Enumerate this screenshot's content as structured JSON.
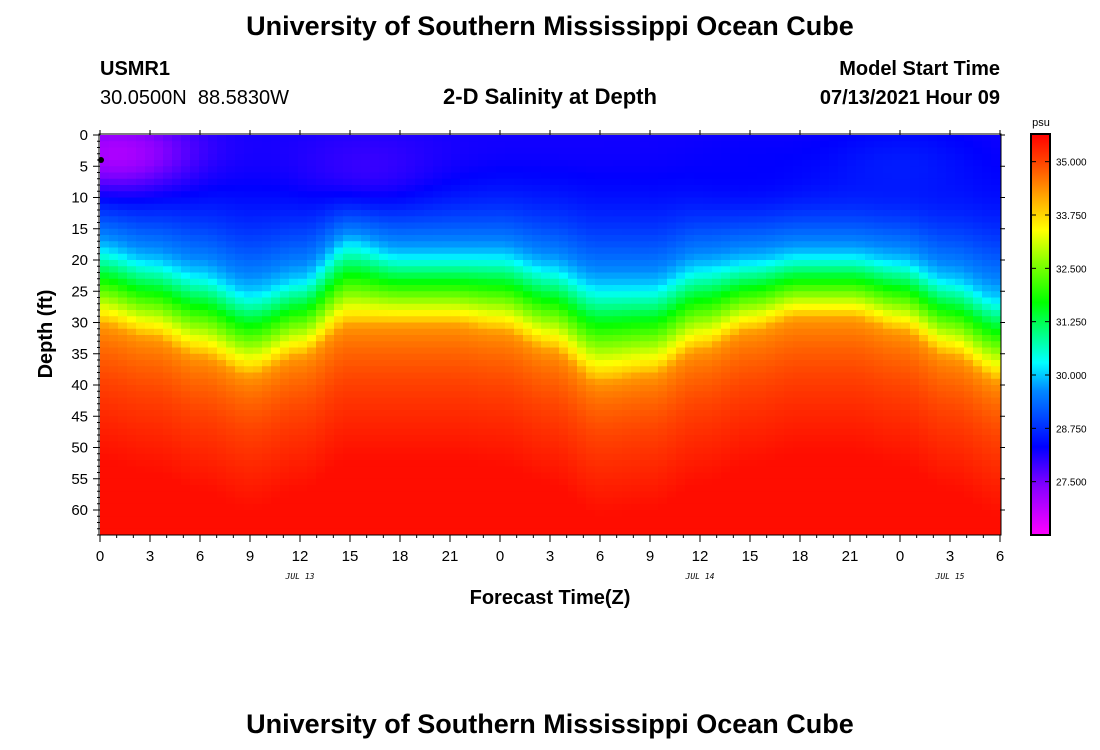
{
  "header": {
    "title": "University of Southern Mississippi Ocean Cube",
    "station_id": "USMR1",
    "station_coords": "30.0500N  88.5830W",
    "plot_title": "2-D Salinity at Depth",
    "model_label": "Model Start Time",
    "model_time": "07/13/2021 Hour 09"
  },
  "footer": {
    "title": "University of Southern Mississippi Ocean Cube"
  },
  "colorbar": {
    "unit": "psu",
    "min": 26.25,
    "max": 35.625,
    "tick_labels": [
      "35.000",
      "33.750",
      "32.500",
      "31.250",
      "30.000",
      "28.750",
      "27.500"
    ],
    "tick_values": [
      35.0,
      33.75,
      32.5,
      31.25,
      30.0,
      28.75,
      27.5
    ]
  },
  "chart_data": {
    "type": "heatmap",
    "title": "2-D Salinity at Depth",
    "xlabel": "Forecast Time(Z)",
    "ylabel": "Depth (ft)",
    "xlim": [
      0,
      54
    ],
    "ylim": [
      0,
      64
    ],
    "x_ticks": [
      0,
      3,
      6,
      9,
      12,
      15,
      18,
      21,
      24,
      27,
      30,
      33,
      36,
      39,
      42,
      45,
      48,
      51,
      54
    ],
    "x_tick_labels": [
      "0",
      "3",
      "6",
      "9",
      "12",
      "15",
      "18",
      "21",
      "0",
      "3",
      "6",
      "9",
      "12",
      "15",
      "18",
      "21",
      "0",
      "3",
      "6"
    ],
    "date_labels": [
      {
        "hour": 12,
        "label": "JUL 13"
      },
      {
        "hour": 36,
        "label": "JUL 14"
      },
      {
        "hour": 51,
        "label": "JUL 15"
      }
    ],
    "y_ticks": [
      0,
      5,
      10,
      15,
      20,
      25,
      30,
      35,
      40,
      45,
      50,
      55,
      60
    ],
    "y_tick_labels": [
      "0",
      "5",
      "10",
      "15",
      "20",
      "25",
      "30",
      "35",
      "40",
      "45",
      "50",
      "55",
      "60"
    ],
    "station_marker_depth": 4,
    "value_unit": "psu",
    "surface_salinity": 28.2,
    "deep_salinity": 35.5,
    "halocline_depth_profile": {
      "hours": [
        0,
        3,
        6,
        9,
        12,
        15,
        18,
        21,
        24,
        27,
        30,
        33,
        36,
        39,
        42,
        45,
        48,
        51,
        54
      ],
      "depth_30psu": [
        18,
        20,
        22,
        25,
        23,
        17,
        19,
        19,
        19,
        21,
        24,
        24,
        21,
        20,
        19,
        19,
        20,
        23,
        26
      ],
      "depth_34psu": [
        30,
        32,
        35,
        38,
        35,
        30,
        30,
        30,
        31,
        34,
        39,
        38,
        34,
        31,
        29,
        29,
        31,
        35,
        39
      ]
    },
    "surface_minimum_zones": [
      {
        "hour": 1,
        "depth": 3,
        "value": 26.9
      },
      {
        "hour": 16,
        "depth": 5,
        "value": 27.9
      },
      {
        "hour": 39,
        "depth": 5,
        "value": 28.3
      },
      {
        "hour": 48,
        "depth": 5,
        "value": 28.6
      }
    ]
  }
}
